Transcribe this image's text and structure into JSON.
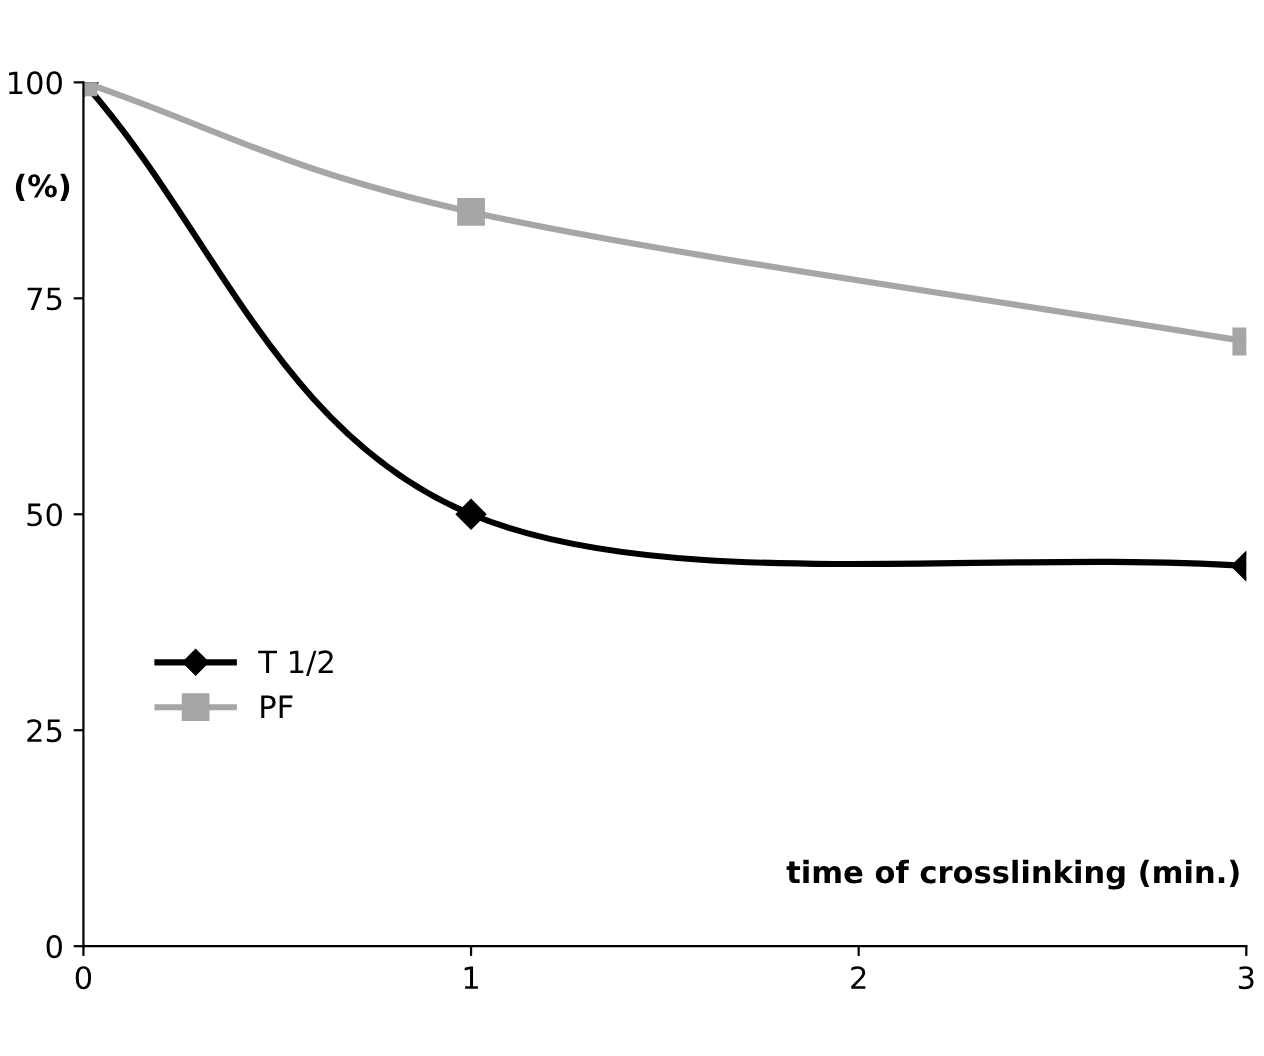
{
  "chart_data": {
    "type": "line",
    "ylabel": "(%)",
    "xlabel": "time of crosslinking (min.)",
    "xlim": [
      0,
      3
    ],
    "xticks": [
      0,
      1,
      2,
      3
    ],
    "ylim": [
      0,
      100
    ],
    "yticks": [
      0,
      25,
      50,
      75,
      100
    ],
    "grid": false,
    "legend": "left",
    "line_style": "solid",
    "series": [
      {
        "name": "T 1/2",
        "color": "#000000",
        "marker": "diamond",
        "x": [
          0,
          1,
          3
        ],
        "values": [
          100,
          50,
          44
        ]
      },
      {
        "name": "PF",
        "color": "#a6a6a6",
        "marker": "square",
        "x": [
          0,
          1,
          3
        ],
        "values": [
          100,
          85,
          70
        ]
      }
    ]
  }
}
